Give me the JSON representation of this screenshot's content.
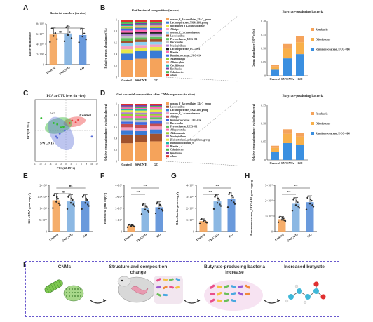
{
  "labels": {
    "A": "A",
    "B": "B",
    "C": "C",
    "D": "D",
    "E": "E",
    "F": "F",
    "G": "G",
    "H": "H",
    "I": "I"
  },
  "panelA": {
    "title": "Bacterial number (in vivo)",
    "ylabel": "Bacterial number",
    "ticks": [
      "0",
      "2×10¹⁰",
      "4×10¹⁰",
      "6×10¹⁰",
      "8×10¹⁰"
    ],
    "groups": [
      "Control",
      "SWCNTs",
      "GO"
    ],
    "values": [
      5.9,
      6.1,
      5.8
    ],
    "sig": "ns",
    "colors": [
      "#f4a45a",
      "#7fb0e0",
      "#5a8fd8"
    ]
  },
  "panelB": {
    "title": "Gut bacterial composition (in vivo)",
    "ylabel": "Relative genus abundance (%)",
    "groups": [
      "Control",
      "SWCNTs",
      "GO"
    ],
    "legend": [
      "norank_f_Bacteroidales_S24-7_group",
      "Lachnospiraceae_NK4A136_group",
      "unclassified_f_Lachnospiraceae",
      "Alistipes",
      "norank_f_Lachnospiraceae",
      "Lactobacillus",
      "Prevotellaceae_UCG-001",
      "Bacteroides",
      "Mucispirillum",
      "Lachnospiraceae_UCG-001",
      "Blautia",
      "Ruminococcaceae_UCG-014",
      "Akkermansia",
      "Allobaculum",
      "Oscillibacter",
      "Roseburia",
      "Odoribacter",
      "others"
    ],
    "colors": [
      "#f5a35b",
      "#3a7bd5",
      "#e8e84a",
      "#f4a0c0",
      "#8fd1f0",
      "#a0522d",
      "#5fbf5f",
      "#c0c0c0",
      "#b080d0",
      "#222222",
      "#ff69b4",
      "#4169e1",
      "#9acd32",
      "#ffa07a",
      "#20b2aa",
      "#7b3fa0",
      "#4db84d",
      "#e0312b"
    ],
    "ticks": [
      "0",
      "0.2",
      "0.4",
      "0.6",
      "0.8",
      "1"
    ]
  },
  "panelB2": {
    "title": "Butyrate-producing bacteria",
    "ylabel": "Genus abundance (10¹⁰ cells)",
    "groups": [
      "Control",
      "SWCNTs",
      "GO"
    ],
    "legend": [
      "Roseburia",
      "Odoribacter",
      "Ruminococcaceae_UCG-014"
    ],
    "colors": [
      "#f5a35b",
      "#f8b04a",
      "#3a8fe0"
    ],
    "ticks": [
      "0",
      "0.05",
      "0.10",
      "0.15",
      "0.20"
    ]
  },
  "panelC": {
    "title": "PCA at OTU level (in vivo)",
    "xlabel": "PC1(22.19%)",
    "ylabel": "PC2(14.2%)",
    "groups": [
      "Control",
      "GO",
      "SWCNTs"
    ],
    "xticks": [
      "-12",
      "-10",
      "-8",
      "-6",
      "-4",
      "-2",
      "0",
      "2",
      "4",
      "6",
      "8",
      "10",
      "12"
    ]
  },
  "panelD": {
    "title": "Gut bacterial composition after CNMs exposure (in vivo)",
    "ylabel": "Relative genus abundance (ratio fecal per g)",
    "groups": [
      "Control",
      "SWCNTs",
      "GO"
    ],
    "legend": [
      "norank_f_Bacteroidales_S24-7_group",
      "Lactobacillus",
      "Lachnospiraceae_NK4A136_group",
      "norank_f_Lachnospiraceae",
      "Alistipes",
      "Ruminococcaceae_UCG-014",
      "Bacteroides",
      "Prevotellaceae_UCG-001",
      "Alloprevotella",
      "Akkermansia",
      "Mucispirillum",
      "[Eubacterium]_xylanophilum_group",
      "Ruminiclostridium_9",
      "Blautia",
      "Odoribacter",
      "Roseburia",
      "others"
    ],
    "ticks": [
      "0",
      "0.2",
      "0.4",
      "0.6",
      "0.8",
      "1"
    ]
  },
  "panelD2": {
    "title": "Butyrate-producing bacteria",
    "ylabel": "Relative genus abundance (ratio fecal per g)",
    "groups": [
      "Control",
      "SWCNTs",
      "GO"
    ],
    "legend": [
      "Roseburia",
      "Odoribacter",
      "Ruminococcaceae_UCG-014"
    ],
    "colors": [
      "#f5a35b",
      "#f8b04a",
      "#3a8fe0"
    ],
    "ticks": [
      "0",
      "0.05",
      "0.10",
      "0.15"
    ]
  },
  "panelE": {
    "ylabel": "16S rRNA gene copy/g",
    "groups": [
      "Control",
      "SWCNTs",
      "GO"
    ],
    "sig": "ns",
    "values": [
      1.35,
      1.3,
      1.3
    ],
    "ticks": [
      "0",
      "5×10¹⁰",
      "1×10¹¹",
      "1.5×10¹¹",
      "2×10¹¹"
    ],
    "colors": [
      "#f4a45a",
      "#7fb0e0",
      "#5a8fd8"
    ]
  },
  "panelF": {
    "ylabel": "Roseburia gene copy/g",
    "groups": [
      "Control",
      "SWCNTs",
      "GO"
    ],
    "sig": "**",
    "values": [
      0.5,
      2.0,
      2.1
    ],
    "ticks": [
      "0",
      "1×10⁹",
      "2×10⁹",
      "3×10⁹",
      "4×10⁹"
    ],
    "colors": [
      "#f4a45a",
      "#7fb0e0",
      "#5a8fd8"
    ]
  },
  "panelG": {
    "ylabel": "Odoribacter gene copy/g",
    "groups": [
      "Control",
      "SWCNTs",
      "GO"
    ],
    "sig": "**",
    "values": [
      0.9,
      2.6,
      2.8
    ],
    "ticks": [
      "0",
      "1×10¹⁰",
      "2×10¹⁰",
      "3×10¹⁰",
      "4×10¹⁰"
    ],
    "colors": [
      "#f4a45a",
      "#7fb0e0",
      "#5a8fd8"
    ]
  },
  "panelH": {
    "ylabel": "Ruminococcaceae_UCG-014 gene copy/g",
    "groups": [
      "Control",
      "SWCNTs",
      "GO"
    ],
    "sig": "**",
    "values": [
      0.8,
      1.8,
      1.9
    ],
    "ticks": [
      "0",
      "1×10¹⁰",
      "2×10¹⁰",
      "3×10¹⁰"
    ],
    "colors": [
      "#f4a45a",
      "#7fb0e0",
      "#5a8fd8"
    ]
  },
  "schematic": {
    "steps": [
      "CNMs",
      "Structure and composition change",
      "Butyrate-producing bacteria increase",
      "Increased butyrate"
    ]
  }
}
